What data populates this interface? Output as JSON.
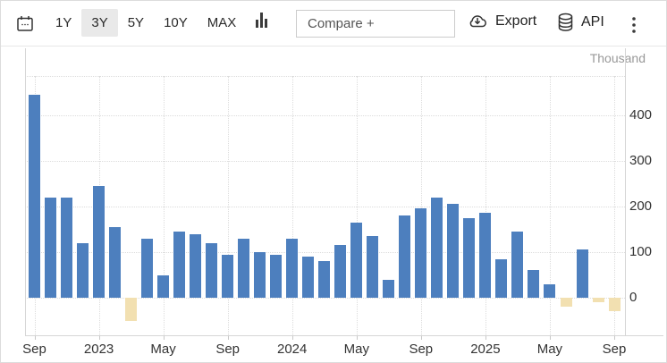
{
  "toolbar": {
    "ranges": [
      {
        "label": "1Y",
        "active": false
      },
      {
        "label": "3Y",
        "active": true
      },
      {
        "label": "5Y",
        "active": false
      },
      {
        "label": "10Y",
        "active": false
      },
      {
        "label": "MAX",
        "active": false
      }
    ],
    "compare_placeholder": "Compare +",
    "export_label": "Export",
    "api_label": "API",
    "icons": {
      "left": "calendar-icon",
      "chart_type": "column-chart-icon",
      "export": "cloud-download-icon",
      "api": "database-icon",
      "menu": "kebab-menu-icon"
    }
  },
  "chart_data": {
    "type": "bar",
    "unit_label": "Thousand",
    "grid": "dotted",
    "legend": "none",
    "y_axis_side": "right",
    "y_ticks": [
      0,
      100,
      200,
      300,
      400
    ],
    "y_range": [
      -82,
      485
    ],
    "x_tick_labels": [
      "Sep",
      "2023",
      "May",
      "Sep",
      "2024",
      "May",
      "Sep",
      "2025",
      "May",
      "Sep"
    ],
    "x_tick_indices": [
      0,
      4,
      8,
      12,
      16,
      20,
      24,
      28,
      32,
      36
    ],
    "categories": [
      "Sep 2022",
      "Oct 2022",
      "Nov 2022",
      "Dec 2022",
      "Jan 2023",
      "Feb 2023",
      "Mar 2023",
      "Apr 2023",
      "May 2023",
      "Jun 2023",
      "Jul 2023",
      "Aug 2023",
      "Sep 2023",
      "Oct 2023",
      "Nov 2023",
      "Dec 2023",
      "Jan 2024",
      "Feb 2024",
      "Mar 2024",
      "Apr 2024",
      "May 2024",
      "Jun 2024",
      "Jul 2024",
      "Aug 2024",
      "Sep 2024",
      "Oct 2024",
      "Nov 2024",
      "Dec 2024",
      "Jan 2025",
      "Feb 2025",
      "Mar 2025",
      "Apr 2025",
      "May 2025",
      "Jun 2025",
      "Jul 2025",
      "Aug 2025",
      "Sep 2025"
    ],
    "values": [
      445,
      220,
      220,
      120,
      245,
      155,
      -50,
      130,
      50,
      145,
      140,
      120,
      95,
      130,
      100,
      95,
      130,
      90,
      80,
      115,
      165,
      135,
      40,
      180,
      195,
      220,
      205,
      175,
      185,
      85,
      145,
      60,
      30,
      -20,
      105,
      -10,
      -30
    ],
    "positive_color": "#4D7FBE",
    "negative_color": "#F2E0B1"
  }
}
